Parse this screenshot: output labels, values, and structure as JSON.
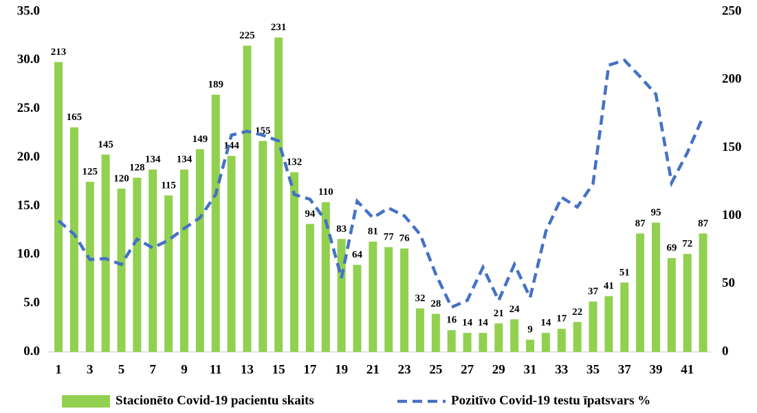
{
  "chart_data": {
    "type": "bar",
    "categories": [
      1,
      null,
      3,
      null,
      5,
      null,
      7,
      null,
      9,
      null,
      11,
      null,
      13,
      null,
      15,
      null,
      17,
      null,
      19,
      null,
      21,
      null,
      23,
      null,
      25,
      null,
      27,
      null,
      29,
      null,
      31,
      null,
      33,
      null,
      35,
      null,
      37,
      null,
      39,
      null,
      41,
      null
    ],
    "series": [
      {
        "name": "Stacionēto Covid-19 pacientu skaits",
        "type": "bar",
        "axis": "y2",
        "color": "#92d050",
        "values": [
          213,
          165,
          125,
          145,
          120,
          128,
          134,
          115,
          134,
          149,
          189,
          144,
          225,
          155,
          231,
          132,
          94,
          110,
          83,
          64,
          81,
          77,
          76,
          32,
          28,
          16,
          14,
          14,
          21,
          24,
          9,
          14,
          17,
          22,
          37,
          41,
          51,
          87,
          95,
          69,
          72,
          87
        ]
      },
      {
        "name": "Pozitīvo Covid-19 testu īpatsvars %",
        "type": "line",
        "axis": "y",
        "color": "#4472c4",
        "dashed": true,
        "values": [
          13.5,
          12.1,
          9.5,
          9.6,
          9.0,
          11.6,
          10.7,
          11.5,
          12.7,
          13.8,
          16.2,
          22.3,
          22.7,
          22.3,
          21.7,
          16.2,
          15.7,
          13.5,
          7.6,
          15.5,
          13.8,
          14.8,
          14.0,
          12.1,
          8.0,
          4.6,
          5.3,
          8.7,
          5.3,
          9.0,
          5.6,
          12.4,
          15.9,
          14.9,
          17.3,
          29.5,
          30.0,
          28.3,
          26.5,
          17.4,
          20.5,
          24.2
        ]
      }
    ],
    "ylim": [
      0,
      35
    ],
    "yticks": [
      {
        "value": 0,
        "label": "0.0"
      },
      {
        "value": 5,
        "label": "5.0"
      },
      {
        "value": 10,
        "label": "10.0"
      },
      {
        "value": 15,
        "label": "15.0"
      },
      {
        "value": 20,
        "label": "20.0"
      },
      {
        "value": 25,
        "label": "25.0"
      },
      {
        "value": 30,
        "label": "30.0"
      },
      {
        "value": 35,
        "label": "35.0"
      }
    ],
    "y2lim": [
      0,
      250
    ],
    "y2ticks": [
      0,
      50,
      100,
      150,
      200,
      250
    ],
    "legend": "bottom"
  }
}
